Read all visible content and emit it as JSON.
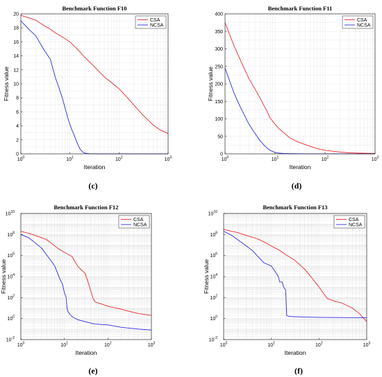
{
  "chart_data": [
    {
      "type": "line",
      "title": "Benchmark Function F10",
      "xlabel": "Iteration",
      "ylabel": "Fitness value",
      "caption": "(c)",
      "xscale": "log",
      "yscale": "linear",
      "xlim": [
        1,
        1000
      ],
      "ylim": [
        0,
        20
      ],
      "yticks": [
        "0",
        "2",
        "4",
        "6",
        "8",
        "10",
        "12",
        "14",
        "16",
        "18",
        "20"
      ],
      "xticks": [
        {
          "base": "10",
          "exp": "0"
        },
        {
          "base": "10",
          "exp": "1"
        },
        {
          "base": "10",
          "exp": "2"
        },
        {
          "base": "10",
          "exp": "3"
        }
      ],
      "grid": true,
      "legend": "top-right",
      "series": [
        {
          "name": "CSA",
          "color": "#e8262a",
          "x": [
            1,
            1.5,
            2,
            3,
            4,
            5,
            7,
            10,
            15,
            20,
            30,
            50,
            70,
            100,
            150,
            200,
            300,
            500,
            700,
            1000
          ],
          "y": [
            19.8,
            19.4,
            19.1,
            18.3,
            17.8,
            17.3,
            16.7,
            16.0,
            14.8,
            13.8,
            12.6,
            11.0,
            10.2,
            9.3,
            8.0,
            7.0,
            5.6,
            4.1,
            3.4,
            2.9
          ]
        },
        {
          "name": "NCSA",
          "color": "#2a2ae0",
          "x": [
            1,
            1.5,
            2,
            3,
            4,
            5,
            6,
            7,
            8,
            9,
            10,
            11,
            12,
            14,
            16,
            18,
            20,
            25,
            30,
            100,
            1000
          ],
          "y": [
            19.0,
            17.7,
            16.9,
            14.8,
            13.5,
            11.0,
            9.4,
            8.0,
            6.5,
            5.2,
            4.2,
            3.4,
            2.8,
            1.6,
            0.7,
            0.3,
            0.1,
            0.02,
            0,
            0,
            0
          ]
        }
      ]
    },
    {
      "type": "line",
      "title": "Benchmark Function F11",
      "xlabel": "Iteration",
      "ylabel": "Fitness value",
      "caption": "(d)",
      "xscale": "log",
      "yscale": "linear",
      "xlim": [
        1,
        1000
      ],
      "ylim": [
        0,
        400
      ],
      "yticks": [
        "0",
        "50",
        "100",
        "150",
        "200",
        "250",
        "300",
        "350",
        "400"
      ],
      "xticks": [
        {
          "base": "10",
          "exp": "0"
        },
        {
          "base": "10",
          "exp": "1"
        },
        {
          "base": "10",
          "exp": "2"
        },
        {
          "base": "10",
          "exp": "3"
        }
      ],
      "grid": true,
      "legend": "top-right",
      "series": [
        {
          "name": "CSA",
          "color": "#e8262a",
          "x": [
            1,
            1.5,
            2,
            3,
            4,
            5,
            6,
            7,
            8,
            10,
            12,
            15,
            20,
            30,
            50,
            70,
            100,
            200,
            300,
            500,
            1000
          ],
          "y": [
            375,
            310,
            270,
            215,
            185,
            160,
            138,
            120,
            102,
            85,
            72,
            60,
            45,
            33,
            22,
            15,
            10,
            5,
            3,
            2,
            1
          ]
        },
        {
          "name": "NCSA",
          "color": "#2a2ae0",
          "x": [
            1,
            1.5,
            2,
            3,
            4,
            5,
            6,
            7,
            8,
            10,
            12,
            15,
            20,
            30,
            50,
            100,
            1000
          ],
          "y": [
            245,
            175,
            135,
            85,
            58,
            38,
            25,
            16,
            10,
            4,
            2,
            1,
            0.5,
            0.3,
            0.2,
            0.1,
            0
          ]
        }
      ]
    },
    {
      "type": "line",
      "title": "Benchmark Function F12",
      "xlabel": "Iteration",
      "ylabel": "Fitness value",
      "caption": "(e)",
      "xscale": "log",
      "yscale": "log",
      "xlim": [
        1,
        1000
      ],
      "ylim": [
        0.01,
        10000000000
      ],
      "yticks": [
        {
          "base": "10",
          "exp": "-2"
        },
        {
          "base": "10",
          "exp": "0"
        },
        {
          "base": "10",
          "exp": "2"
        },
        {
          "base": "10",
          "exp": "4"
        },
        {
          "base": "10",
          "exp": "6"
        },
        {
          "base": "10",
          "exp": "8"
        },
        {
          "base": "10",
          "exp": "10"
        }
      ],
      "xticks": [
        {
          "base": "10",
          "exp": "0"
        },
        {
          "base": "10",
          "exp": "1"
        },
        {
          "base": "10",
          "exp": "2"
        },
        {
          "base": "10",
          "exp": "3"
        }
      ],
      "grid": true,
      "legend": "top-right",
      "series": [
        {
          "name": "CSA",
          "color": "#e8262a",
          "x": [
            1,
            1.5,
            2,
            3,
            4,
            5,
            7,
            10,
            15,
            20,
            25,
            30,
            35,
            40,
            45,
            50,
            60,
            70,
            100,
            150,
            200,
            300,
            500,
            1000
          ],
          "y": [
            200000000,
            130000000,
            90000000,
            50000000,
            30000000,
            15000000,
            5000000,
            2000000,
            800000,
            100000,
            40000,
            20000,
            3000,
            500,
            100,
            40,
            30,
            25,
            15,
            10,
            8,
            5,
            3,
            2
          ]
        },
        {
          "name": "NCSA",
          "color": "#2a2ae0",
          "x": [
            1,
            1.5,
            2,
            3,
            4,
            5,
            6,
            7,
            8,
            9,
            10,
            11,
            11.5,
            12,
            13,
            15,
            20,
            30,
            50,
            100,
            200,
            500,
            1000
          ],
          "y": [
            100000000,
            50000000,
            20000000,
            5000000,
            1000000,
            300000,
            100000,
            20000,
            5000,
            2000,
            300,
            100,
            10,
            5,
            3,
            1.5,
            0.8,
            0.5,
            0.3,
            0.25,
            0.15,
            0.1,
            0.08
          ]
        }
      ]
    },
    {
      "type": "line",
      "title": "Benchmark Function F13",
      "xlabel": "Iteration",
      "ylabel": "Fitness value",
      "caption": "(f)",
      "xscale": "log",
      "yscale": "log",
      "xlim": [
        1,
        1000
      ],
      "ylim": [
        0.01,
        10000000000
      ],
      "yticks": [
        {
          "base": "10",
          "exp": "-2"
        },
        {
          "base": "10",
          "exp": "0"
        },
        {
          "base": "10",
          "exp": "2"
        },
        {
          "base": "10",
          "exp": "4"
        },
        {
          "base": "10",
          "exp": "6"
        },
        {
          "base": "10",
          "exp": "8"
        },
        {
          "base": "10",
          "exp": "10"
        }
      ],
      "xticks": [
        {
          "base": "10",
          "exp": "0"
        },
        {
          "base": "10",
          "exp": "1"
        },
        {
          "base": "10",
          "exp": "2"
        },
        {
          "base": "10",
          "exp": "3"
        }
      ],
      "grid": true,
      "legend": "top-right",
      "series": [
        {
          "name": "CSA",
          "color": "#e8262a",
          "x": [
            1,
            1.5,
            2,
            3,
            5,
            7,
            10,
            15,
            20,
            30,
            50,
            70,
            100,
            120,
            150,
            200,
            300,
            500,
            700,
            1000
          ],
          "y": [
            300000000,
            200000000,
            150000000,
            80000000,
            40000000,
            20000000,
            8000000,
            3000000,
            1200000,
            400000,
            50000,
            8000,
            1000,
            300,
            80,
            50,
            30,
            10,
            3,
            0.5
          ]
        },
        {
          "name": "NCSA",
          "color": "#2a2ae0",
          "x": [
            1,
            1.5,
            2,
            3,
            4,
            5,
            7,
            10,
            12,
            14,
            15,
            17,
            18,
            20,
            21,
            22,
            23,
            25,
            30,
            50,
            100,
            1000
          ],
          "y": [
            200000000,
            80000000,
            30000000,
            8000000,
            3000000,
            1000000,
            200000,
            100000,
            30000,
            10000,
            3000,
            3000,
            1000,
            500,
            2,
            1.8,
            1.7,
            1.6,
            1.5,
            1.4,
            1.3,
            1.2
          ]
        }
      ]
    }
  ]
}
